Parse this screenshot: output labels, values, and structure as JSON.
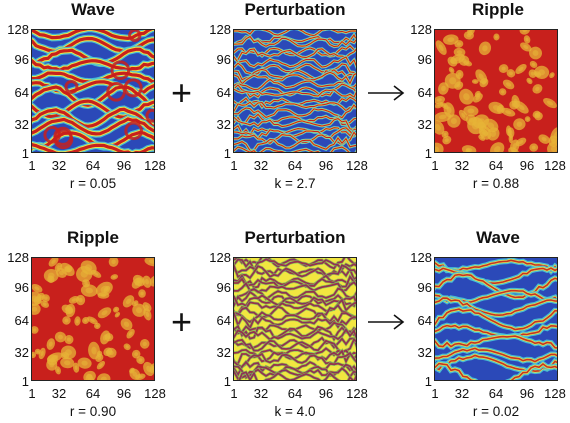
{
  "axes": {
    "yticks": [
      "128",
      "96",
      "64",
      "32",
      "1"
    ],
    "xticks": [
      "1",
      "32",
      "64",
      "96",
      "128"
    ]
  },
  "operators": {
    "plus": "+"
  },
  "rows": [
    {
      "panels": [
        {
          "title": "Wave",
          "param": "r = 0.05",
          "pattern": "wave"
        },
        {
          "title": "Perturbation",
          "param": "k = 2.7",
          "pattern": "perturbation"
        },
        {
          "title": "Ripple",
          "param": "r = 0.88",
          "pattern": "ripple"
        }
      ]
    },
    {
      "panels": [
        {
          "title": "Ripple",
          "param": "r = 0.90",
          "pattern": "ripple"
        },
        {
          "title": "Perturbation",
          "param": "k = 4.0",
          "pattern": "perturbation-dense"
        },
        {
          "title": "Wave",
          "param": "r = 0.02",
          "pattern": "wave-blue"
        }
      ]
    }
  ],
  "colors": {
    "red": "#c8201c",
    "yellow": "#f2e640",
    "cyan": "#49c6d8",
    "blue": "#2b49b8",
    "green": "#6fc06a"
  }
}
